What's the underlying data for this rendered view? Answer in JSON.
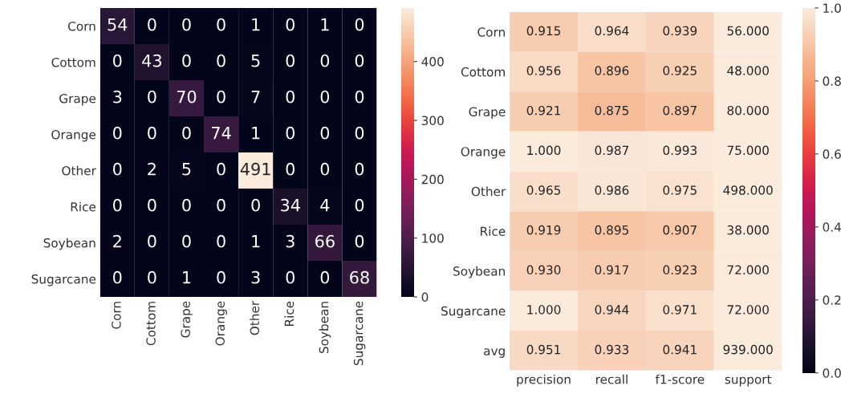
{
  "chart_data": [
    {
      "type": "heatmap",
      "categories": [
        "Corn",
        "Cottom",
        "Grape",
        "Orange",
        "Other",
        "Rice",
        "Soybean",
        "Sugarcane"
      ],
      "y_categories": [
        "Corn",
        "Cottom",
        "Grape",
        "Orange",
        "Other",
        "Rice",
        "Soybean",
        "Sugarcane"
      ],
      "cells": [
        [
          54,
          0,
          0,
          0,
          1,
          0,
          1,
          0
        ],
        [
          0,
          43,
          0,
          0,
          5,
          0,
          0,
          0
        ],
        [
          3,
          0,
          70,
          0,
          7,
          0,
          0,
          0
        ],
        [
          0,
          0,
          0,
          74,
          1,
          0,
          0,
          0
        ],
        [
          0,
          2,
          5,
          0,
          491,
          0,
          0,
          0
        ],
        [
          0,
          0,
          0,
          0,
          0,
          34,
          4,
          0
        ],
        [
          2,
          0,
          0,
          0,
          1,
          3,
          66,
          0
        ],
        [
          0,
          0,
          1,
          0,
          3,
          0,
          0,
          68
        ]
      ],
      "clim": [
        0,
        491
      ],
      "cticks": [
        0,
        100,
        200,
        300,
        400
      ],
      "data_labels": true
    },
    {
      "type": "heatmap",
      "categories": [
        "precision",
        "recall",
        "f1-score",
        "support"
      ],
      "y_categories": [
        "Corn",
        "Cottom",
        "Grape",
        "Orange",
        "Other",
        "Rice",
        "Soybean",
        "Sugarcane",
        "avg"
      ],
      "cells": [
        [
          0.915,
          0.964,
          0.939,
          56
        ],
        [
          0.956,
          0.896,
          0.925,
          48
        ],
        [
          0.921,
          0.875,
          0.897,
          80
        ],
        [
          1.0,
          0.987,
          0.993,
          75
        ],
        [
          0.965,
          0.986,
          0.975,
          498
        ],
        [
          0.919,
          0.895,
          0.907,
          38
        ],
        [
          0.93,
          0.917,
          0.923,
          72
        ],
        [
          1.0,
          0.944,
          0.971,
          72
        ],
        [
          0.951,
          0.933,
          0.941,
          939
        ]
      ],
      "cell_labels": [
        [
          "0.915",
          "0.964",
          "0.939",
          "56.000"
        ],
        [
          "0.956",
          "0.896",
          "0.925",
          "48.000"
        ],
        [
          "0.921",
          "0.875",
          "0.897",
          "80.000"
        ],
        [
          "1.000",
          "0.987",
          "0.993",
          "75.000"
        ],
        [
          "0.965",
          "0.986",
          "0.975",
          "498.000"
        ],
        [
          "0.919",
          "0.895",
          "0.907",
          "38.000"
        ],
        [
          "0.930",
          "0.917",
          "0.923",
          "72.000"
        ],
        [
          "1.000",
          "0.944",
          "0.971",
          "72.000"
        ],
        [
          "0.951",
          "0.933",
          "0.941",
          "939.000"
        ]
      ],
      "clim": [
        0,
        1
      ],
      "cticks": [
        {
          "value": 0,
          "label": "0.0"
        },
        {
          "value": 0.2,
          "label": "0.2"
        },
        {
          "value": 0.4,
          "label": "0.4"
        },
        {
          "value": 0.6,
          "label": "0.6"
        },
        {
          "value": 0.8,
          "label": "0.8"
        },
        {
          "value": 1,
          "label": "1.0"
        }
      ]
    }
  ]
}
